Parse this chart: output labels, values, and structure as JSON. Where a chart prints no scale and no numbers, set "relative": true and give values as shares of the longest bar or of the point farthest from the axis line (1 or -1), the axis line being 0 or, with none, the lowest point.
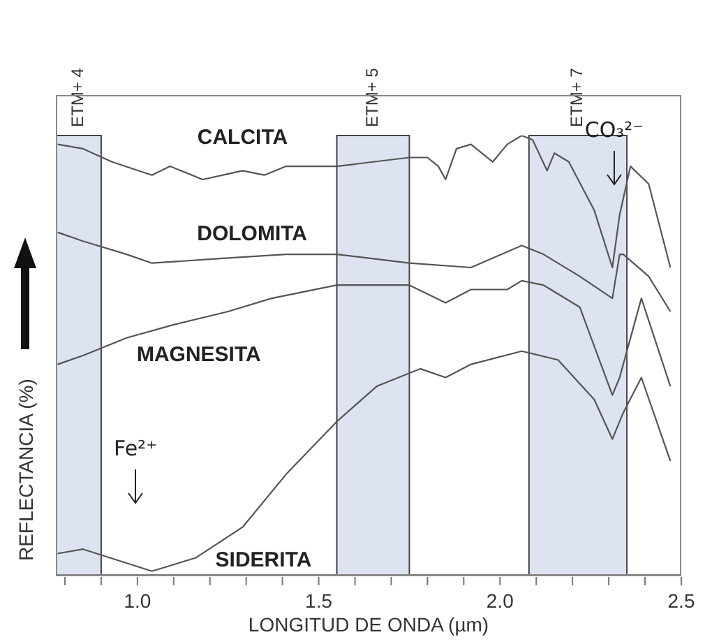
{
  "chart_data": {
    "type": "line",
    "relative": true,
    "xlabel": "LONGITUD DE ONDA (µm)",
    "ylabel": "REFLECTANCIA (%)",
    "xlim": [
      0.775,
      2.5
    ],
    "xticks": [
      {
        "value": 0.8,
        "label": null
      },
      {
        "value": 0.9,
        "label": null
      },
      {
        "value": 1.0,
        "label": "1.0"
      },
      {
        "value": 1.1,
        "label": null
      },
      {
        "value": 1.2,
        "label": null
      },
      {
        "value": 1.3,
        "label": null
      },
      {
        "value": 1.4,
        "label": null
      },
      {
        "value": 1.5,
        "label": "1.5"
      },
      {
        "value": 1.6,
        "label": null
      },
      {
        "value": 1.7,
        "label": null
      },
      {
        "value": 1.8,
        "label": null
      },
      {
        "value": 1.9,
        "label": null
      },
      {
        "value": 2.0,
        "label": "2.0"
      },
      {
        "value": 2.1,
        "label": null
      },
      {
        "value": 2.2,
        "label": null
      },
      {
        "value": 2.3,
        "label": null
      },
      {
        "value": 2.4,
        "label": null
      },
      {
        "value": 2.5,
        "label": "2.5"
      }
    ],
    "marker": "none",
    "line_style": "solid",
    "series": [
      {
        "name": "CALCITA",
        "color": "#555555",
        "x": [
          0.78,
          0.85,
          0.93,
          1.04,
          1.09,
          1.18,
          1.29,
          1.35,
          1.41,
          1.55,
          1.75,
          1.8,
          1.83,
          1.85,
          1.88,
          1.92,
          1.98,
          2.02,
          2.06,
          2.09,
          2.13,
          2.15,
          2.19,
          2.26,
          2.31,
          2.33,
          2.36,
          2.41,
          2.47
        ],
        "values": [
          0.98,
          0.97,
          0.94,
          0.91,
          0.93,
          0.9,
          0.92,
          0.91,
          0.93,
          0.93,
          0.95,
          0.95,
          0.93,
          0.9,
          0.97,
          0.98,
          0.94,
          0.98,
          1.0,
          0.99,
          0.92,
          0.96,
          0.94,
          0.83,
          0.7,
          0.82,
          0.93,
          0.89,
          0.7
        ]
      },
      {
        "name": "DOLOMITA",
        "color": "#555555",
        "x": [
          0.78,
          0.85,
          0.97,
          1.04,
          1.22,
          1.41,
          1.55,
          1.75,
          1.92,
          2.06,
          2.12,
          2.22,
          2.31,
          2.33,
          2.34,
          2.41,
          2.47
        ],
        "values": [
          0.78,
          0.76,
          0.73,
          0.71,
          0.72,
          0.73,
          0.73,
          0.71,
          0.7,
          0.75,
          0.73,
          0.68,
          0.63,
          0.73,
          0.73,
          0.68,
          0.6
        ]
      },
      {
        "name": "MAGNESITA",
        "color": "#555555",
        "x": [
          0.78,
          0.85,
          0.97,
          1.1,
          1.25,
          1.37,
          1.55,
          1.66,
          1.75,
          1.85,
          1.92,
          2.02,
          2.06,
          2.12,
          2.22,
          2.31,
          2.33,
          2.39,
          2.47
        ],
        "values": [
          0.48,
          0.5,
          0.54,
          0.57,
          0.6,
          0.63,
          0.66,
          0.66,
          0.66,
          0.62,
          0.65,
          0.65,
          0.67,
          0.66,
          0.61,
          0.41,
          0.45,
          0.63,
          0.43
        ]
      },
      {
        "name": "SIDERITA",
        "color": "#555555",
        "x": [
          0.78,
          0.85,
          1.04,
          1.16,
          1.29,
          1.41,
          1.55,
          1.66,
          1.78,
          1.85,
          1.92,
          2.06,
          2.16,
          2.26,
          2.31,
          2.34,
          2.39,
          2.47
        ],
        "values": [
          0.05,
          0.06,
          0.01,
          0.04,
          0.11,
          0.23,
          0.35,
          0.43,
          0.47,
          0.45,
          0.48,
          0.51,
          0.49,
          0.4,
          0.31,
          0.37,
          0.45,
          0.26
        ]
      }
    ],
    "bands": [
      {
        "axis": "x",
        "from": 0.775,
        "to": 0.9,
        "label": "ETM+ 4",
        "color": "#dde3f1"
      },
      {
        "axis": "x",
        "from": 1.55,
        "to": 1.75,
        "label": "ETM+ 5",
        "color": "#dde3f1"
      },
      {
        "axis": "x",
        "from": 2.08,
        "to": 2.35,
        "label": "ETM+ 7",
        "color": "#dde3f1"
      }
    ],
    "annotations": [
      "CO₃²⁻",
      "Fe²⁺"
    ]
  }
}
